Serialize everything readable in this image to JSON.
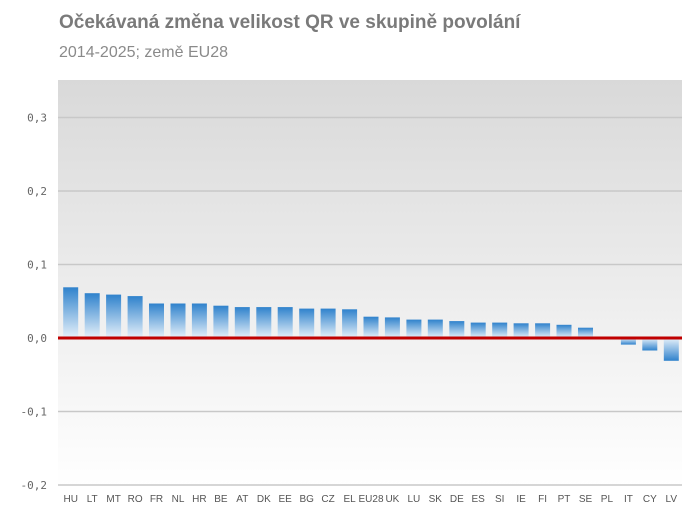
{
  "chart_data": {
    "type": "bar",
    "title": "Očekávaná změna velikost QR ve skupině povolání",
    "subtitle": "2014-2025; země EU28",
    "ylim": [
      -0.2,
      0.35
    ],
    "yticks": [
      -0.2,
      -0.1,
      0.0,
      0.1,
      0.2,
      0.3
    ],
    "ytick_labels": [
      "-0,2",
      "-0,1",
      "0,0",
      "0,1",
      "0,2",
      "0,3"
    ],
    "grid": true,
    "legend": "none",
    "colors": {
      "bar_top": "#2f82cc",
      "bar_bottom": "#e6f1fa",
      "zero_line": "#c00000",
      "grid": "#c8c8c8"
    },
    "categories": [
      "HU",
      "LT",
      "MT",
      "RO",
      "FR",
      "NL",
      "HR",
      "BE",
      "AT",
      "DK",
      "EE",
      "BG",
      "CZ",
      "EL",
      "EU28",
      "UK",
      "LU",
      "SK",
      "DE",
      "ES",
      "SI",
      "IE",
      "FI",
      "PT",
      "SE",
      "PL",
      "IT",
      "CY",
      "LV"
    ],
    "values": [
      0.069,
      0.061,
      0.059,
      0.057,
      0.047,
      0.047,
      0.047,
      0.044,
      0.042,
      0.042,
      0.042,
      0.04,
      0.04,
      0.039,
      0.029,
      0.028,
      0.025,
      0.025,
      0.023,
      0.021,
      0.021,
      0.02,
      0.02,
      0.018,
      0.014,
      0.0,
      -0.009,
      -0.017,
      -0.031
    ]
  }
}
